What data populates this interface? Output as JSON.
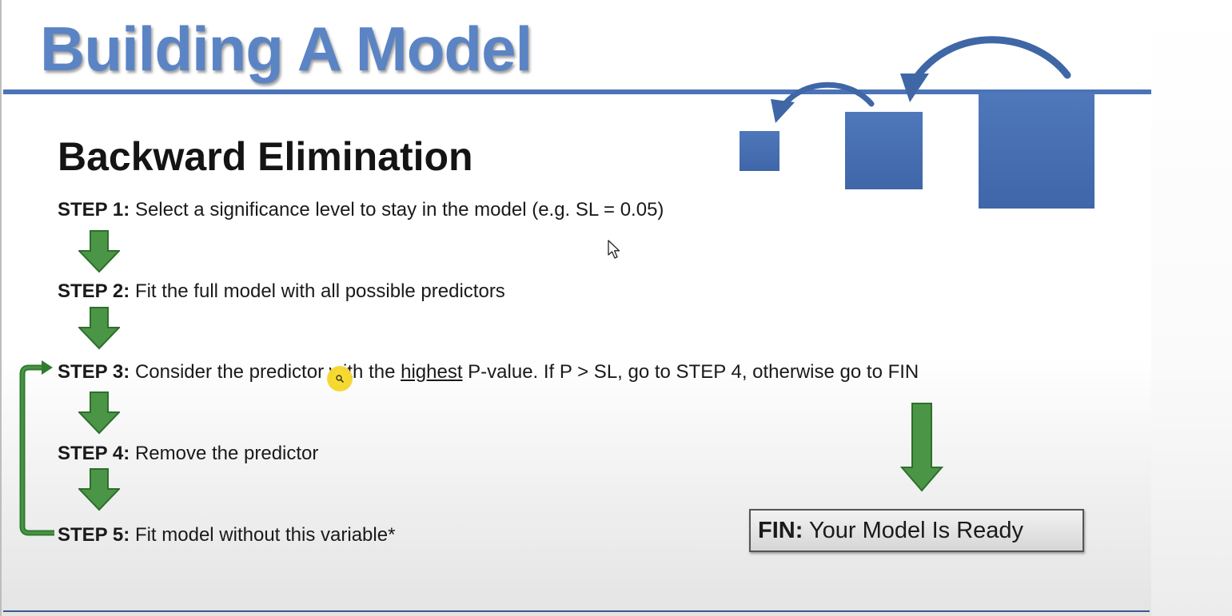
{
  "slide": {
    "title": "Building A Model",
    "subtitle": "Backward Elimination",
    "steps": [
      {
        "label": "STEP 1:",
        "text": "Select a significance level to stay in the model (e.g. SL = 0.05)"
      },
      {
        "label": "STEP 2:",
        "text": "Fit the full model with all possible predictors"
      },
      {
        "label": "STEP 3:",
        "text_before": "Consider the predictor with the ",
        "text_underlined": "highest",
        "text_after": " P-value. If P > SL, go to STEP 4, otherwise go to FIN"
      },
      {
        "label": "STEP 4:",
        "text": "Remove the predictor"
      },
      {
        "label": "STEP 5:",
        "text": "Fit model without this variable*"
      }
    ],
    "fin": {
      "label": "FIN:",
      "text": "Your Model Is Ready"
    }
  },
  "colors": {
    "title_blue": "#5b84c4",
    "rule_blue": "#4b74b8",
    "square_blue": "#4a72b4",
    "arrow_green": "#4a9646",
    "loop_green": "#2f7a2e",
    "highlight_yellow": "#f5d632"
  },
  "icons": [
    "down-arrow-icon",
    "loop-arrow-icon",
    "curved-arrow-icon",
    "mouse-cursor-icon",
    "magnifier-icon"
  ]
}
